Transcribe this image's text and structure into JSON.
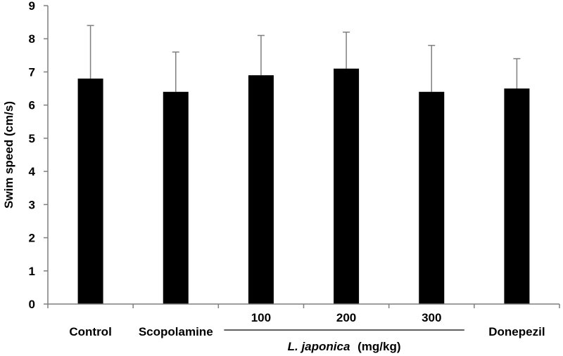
{
  "chart_data": {
    "type": "bar",
    "title": "",
    "ylabel": "Swim speed (cm/s)",
    "ylim": [
      0,
      9
    ],
    "yticks": [
      0,
      1,
      2,
      3,
      4,
      5,
      6,
      7,
      8,
      9
    ],
    "categories": [
      "Control",
      "Scopolamine",
      "100",
      "200",
      "300",
      "Donepezil"
    ],
    "values": [
      6.8,
      6.4,
      6.9,
      7.1,
      6.4,
      6.5
    ],
    "error_upper": [
      8.4,
      7.6,
      8.1,
      8.2,
      7.8,
      7.4
    ],
    "group_label": {
      "italic_part": "L. japonica",
      "unit_part": "(mg/kg)",
      "spans_categories": [
        "100",
        "200",
        "300"
      ]
    },
    "grid": false,
    "bar_color": "#000000",
    "error_bar_color": "#7f7f7f"
  }
}
